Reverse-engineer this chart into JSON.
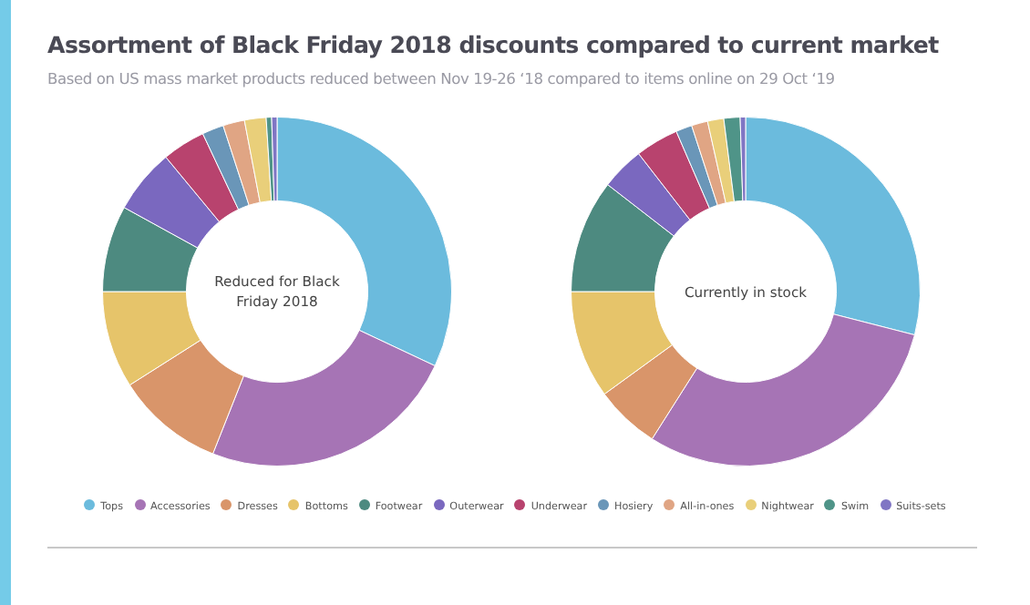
{
  "chart_data": {
    "type": "donut",
    "title": "Assortment of Black Friday 2018 discounts compared to current market",
    "subtitle": "Based on US mass market products reduced between Nov 19-26 ‘18 compared to items online on 29 Oct ‘19",
    "legend": "bottom",
    "categories": [
      "Tops",
      "Accessories",
      "Dresses",
      "Bottoms",
      "Footwear",
      "Outerwear",
      "Underwear",
      "Hosiery",
      "All-in-ones",
      "Nightwear",
      "Swim",
      "Suits-sets"
    ],
    "colors": [
      "#6bbbdd",
      "#a674b5",
      "#d9956a",
      "#e6c46a",
      "#4d8a80",
      "#7a68bf",
      "#b8436e",
      "#6a96b8",
      "#e0a584",
      "#e9cf7a",
      "#4f9488",
      "#8076c4"
    ],
    "series": [
      {
        "name": "Reduced for Black Friday 2018",
        "values": [
          32,
          24,
          10,
          9,
          8,
          6,
          4,
          2,
          2,
          2,
          0.5,
          0.5
        ]
      },
      {
        "name": "Currently in stock",
        "values": [
          29,
          30,
          6,
          10,
          10.5,
          4,
          4,
          1.5,
          1.5,
          1.5,
          1.5,
          0.5
        ]
      }
    ]
  }
}
